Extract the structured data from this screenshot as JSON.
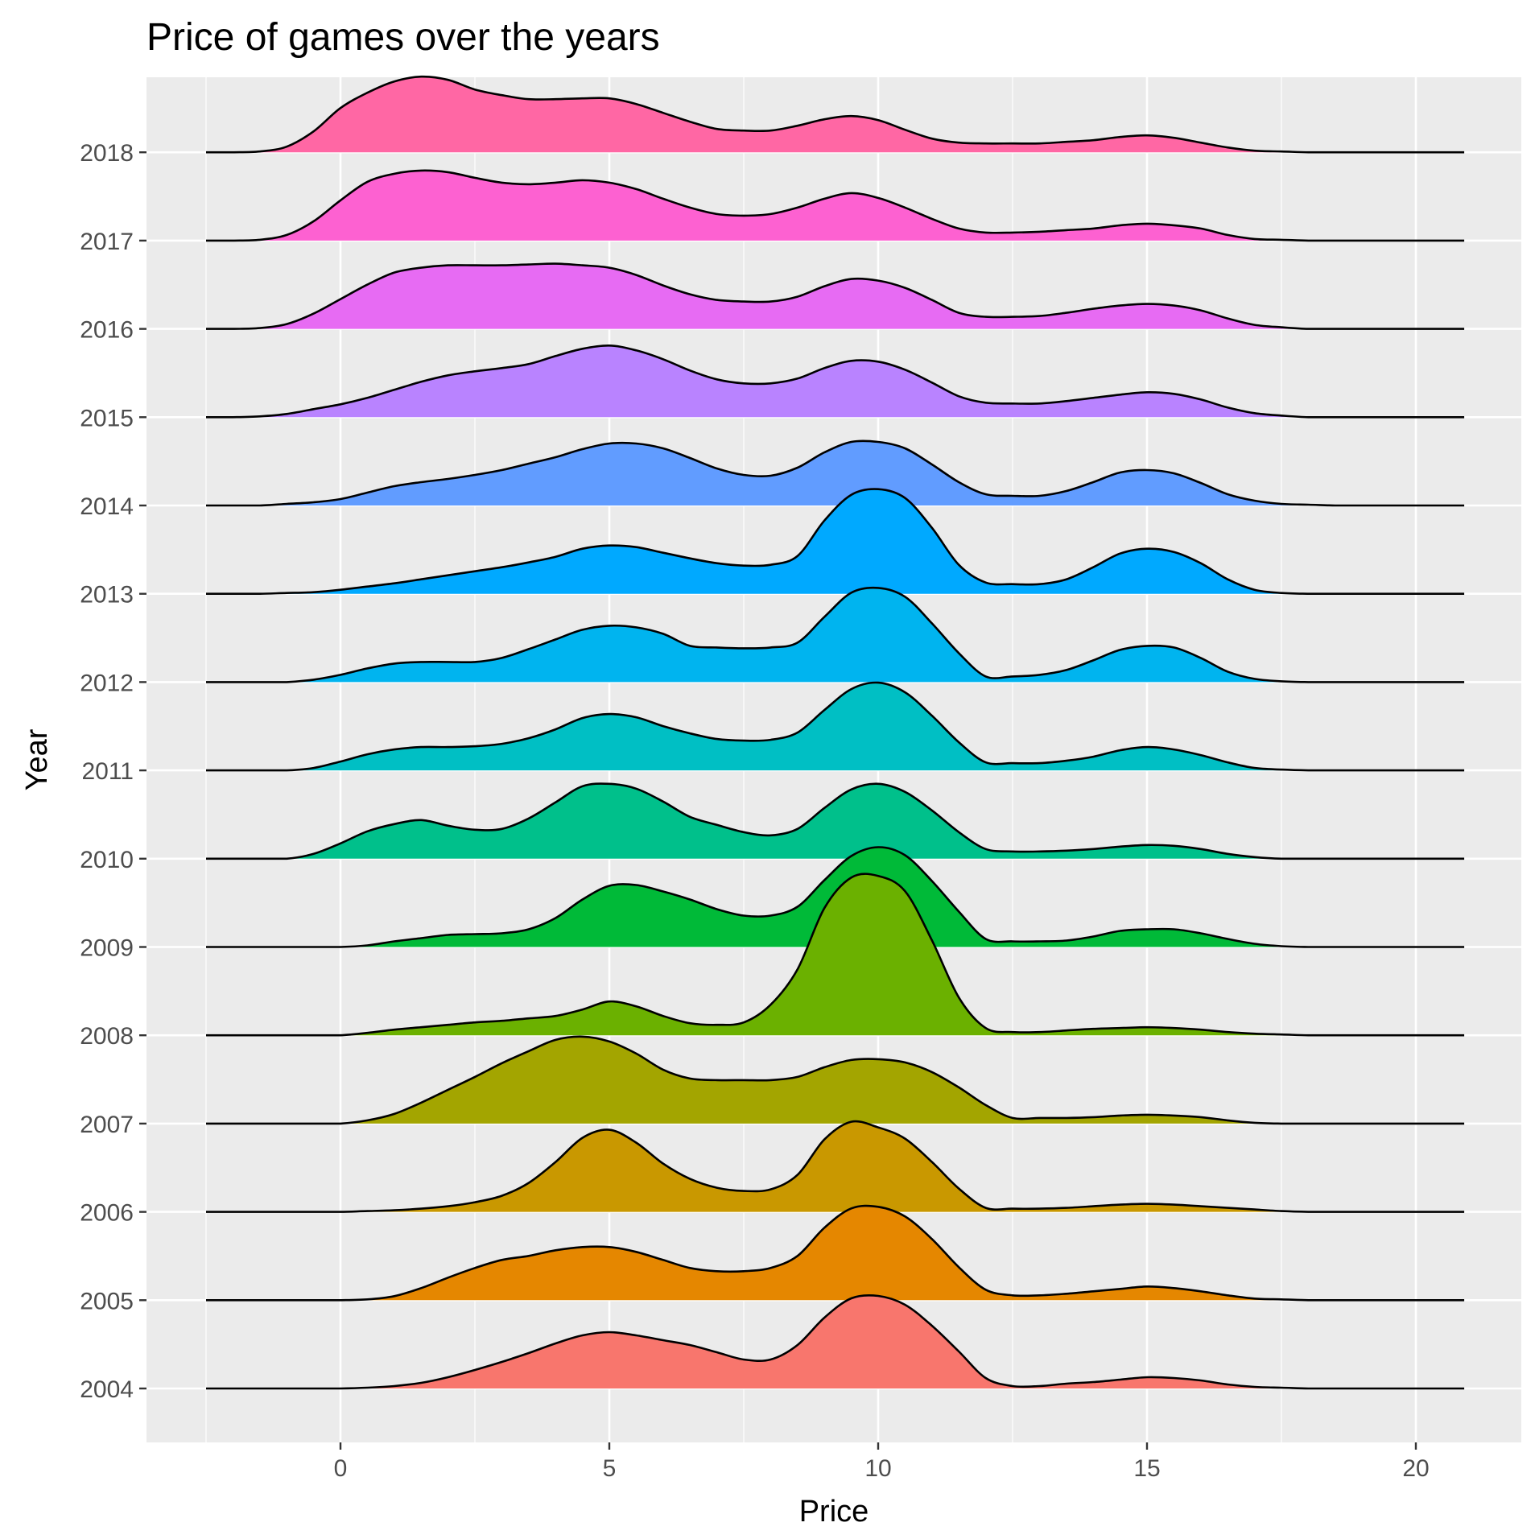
{
  "chart_data": {
    "type": "area",
    "subtype": "ridgeline",
    "title": "Price of games over the years",
    "xlabel": "Price",
    "ylabel": "Year",
    "xlim": [
      -2.5,
      20.9
    ],
    "x_ticks": [
      0,
      5,
      10,
      15,
      20
    ],
    "x_tick_labels": [
      "0",
      "5",
      "10",
      "15",
      "20"
    ],
    "categories": [
      "2004",
      "2005",
      "2006",
      "2007",
      "2008",
      "2009",
      "2010",
      "2011",
      "2012",
      "2013",
      "2014",
      "2015",
      "2016",
      "2017",
      "2018"
    ],
    "background": "#EBEBEB",
    "grid": true,
    "legend": "none",
    "x": [
      -2.5,
      -2,
      -1.5,
      -1,
      -0.5,
      0,
      0.5,
      1,
      1.5,
      2,
      2.5,
      3,
      3.5,
      4,
      4.5,
      5,
      5.5,
      6,
      6.5,
      7,
      7.5,
      8,
      8.5,
      9,
      9.5,
      10,
      10.5,
      11,
      11.5,
      12,
      12.5,
      13,
      13.5,
      14,
      14.5,
      15,
      15.5,
      16,
      16.5,
      17,
      17.5,
      18,
      18.5,
      19,
      19.5,
      20,
      20.5,
      20.9
    ],
    "series": [
      {
        "name": "2004",
        "color": "#F8766D",
        "values": [
          0,
          0,
          0,
          0,
          0,
          0,
          0.01,
          0.03,
          0.07,
          0.14,
          0.23,
          0.33,
          0.44,
          0.56,
          0.66,
          0.7,
          0.66,
          0.6,
          0.54,
          0.45,
          0.36,
          0.36,
          0.54,
          0.88,
          1.12,
          1.15,
          1.04,
          0.78,
          0.46,
          0.13,
          0.03,
          0.03,
          0.06,
          0.08,
          0.11,
          0.14,
          0.13,
          0.1,
          0.05,
          0.02,
          0.01,
          0,
          0,
          0,
          0,
          0,
          0,
          0
        ]
      },
      {
        "name": "2005",
        "color": "#E58700",
        "values": [
          0,
          0,
          0,
          0,
          0,
          0,
          0.01,
          0.05,
          0.15,
          0.28,
          0.4,
          0.5,
          0.55,
          0.62,
          0.66,
          0.66,
          0.6,
          0.5,
          0.4,
          0.36,
          0.36,
          0.4,
          0.55,
          0.9,
          1.14,
          1.16,
          1.04,
          0.76,
          0.41,
          0.13,
          0.06,
          0.06,
          0.08,
          0.11,
          0.14,
          0.17,
          0.15,
          0.11,
          0.06,
          0.02,
          0.01,
          0,
          0,
          0,
          0,
          0,
          0,
          0
        ]
      },
      {
        "name": "2006",
        "color": "#C99800",
        "values": [
          0,
          0,
          0,
          0,
          0,
          0,
          0.01,
          0.02,
          0.04,
          0.07,
          0.12,
          0.2,
          0.36,
          0.62,
          0.92,
          1.02,
          0.86,
          0.6,
          0.41,
          0.3,
          0.26,
          0.28,
          0.46,
          0.9,
          1.12,
          1.05,
          0.91,
          0.62,
          0.29,
          0.05,
          0.04,
          0.04,
          0.05,
          0.07,
          0.09,
          0.1,
          0.09,
          0.07,
          0.05,
          0.03,
          0.01,
          0,
          0,
          0,
          0,
          0,
          0,
          0
        ]
      },
      {
        "name": "2007",
        "color": "#A3A500",
        "values": [
          0,
          0,
          0,
          0,
          0,
          0,
          0.04,
          0.12,
          0.26,
          0.42,
          0.58,
          0.75,
          0.9,
          1.04,
          1.08,
          1.02,
          0.87,
          0.67,
          0.56,
          0.54,
          0.54,
          0.54,
          0.58,
          0.7,
          0.79,
          0.8,
          0.76,
          0.64,
          0.45,
          0.23,
          0.07,
          0.07,
          0.07,
          0.08,
          0.1,
          0.11,
          0.1,
          0.08,
          0.04,
          0.01,
          0,
          0,
          0,
          0,
          0,
          0,
          0,
          0
        ]
      },
      {
        "name": "2008",
        "color": "#6BB100",
        "values": [
          0,
          0,
          0,
          0,
          0,
          0,
          0.03,
          0.07,
          0.1,
          0.13,
          0.16,
          0.18,
          0.21,
          0.24,
          0.32,
          0.42,
          0.36,
          0.24,
          0.15,
          0.13,
          0.16,
          0.38,
          0.82,
          1.58,
          1.96,
          1.98,
          1.79,
          1.18,
          0.47,
          0.09,
          0.04,
          0.04,
          0.06,
          0.08,
          0.09,
          0.1,
          0.09,
          0.07,
          0.04,
          0.02,
          0.01,
          0,
          0,
          0,
          0,
          0,
          0,
          0
        ]
      },
      {
        "name": "2009",
        "color": "#00BA38",
        "values": [
          0,
          0,
          0,
          0,
          0,
          0,
          0.02,
          0.07,
          0.11,
          0.15,
          0.16,
          0.17,
          0.22,
          0.36,
          0.59,
          0.76,
          0.77,
          0.69,
          0.59,
          0.47,
          0.39,
          0.39,
          0.5,
          0.83,
          1.13,
          1.24,
          1.14,
          0.82,
          0.44,
          0.1,
          0.07,
          0.07,
          0.08,
          0.13,
          0.2,
          0.22,
          0.22,
          0.17,
          0.1,
          0.04,
          0.01,
          0,
          0,
          0,
          0,
          0,
          0,
          0
        ]
      },
      {
        "name": "2010",
        "color": "#00C08B",
        "values": [
          0,
          0,
          0,
          0,
          0.06,
          0.19,
          0.34,
          0.43,
          0.48,
          0.41,
          0.36,
          0.37,
          0.5,
          0.7,
          0.9,
          0.93,
          0.87,
          0.71,
          0.52,
          0.42,
          0.33,
          0.29,
          0.37,
          0.63,
          0.86,
          0.93,
          0.83,
          0.6,
          0.33,
          0.12,
          0.09,
          0.09,
          0.1,
          0.12,
          0.15,
          0.17,
          0.16,
          0.12,
          0.06,
          0.02,
          0,
          0,
          0,
          0,
          0,
          0,
          0,
          0
        ]
      },
      {
        "name": "2011",
        "color": "#00BFC4",
        "values": [
          0,
          0,
          0,
          0,
          0.03,
          0.11,
          0.2,
          0.26,
          0.29,
          0.29,
          0.3,
          0.33,
          0.4,
          0.51,
          0.65,
          0.7,
          0.66,
          0.55,
          0.46,
          0.39,
          0.37,
          0.38,
          0.47,
          0.75,
          1.01,
          1.09,
          0.97,
          0.68,
          0.35,
          0.1,
          0.09,
          0.09,
          0.12,
          0.17,
          0.25,
          0.29,
          0.26,
          0.19,
          0.1,
          0.03,
          0.01,
          0,
          0,
          0,
          0,
          0,
          0,
          0
        ]
      },
      {
        "name": "2012",
        "color": "#00B4EF",
        "values": [
          0,
          0,
          0,
          0,
          0.03,
          0.09,
          0.17,
          0.23,
          0.25,
          0.25,
          0.25,
          0.3,
          0.41,
          0.53,
          0.65,
          0.7,
          0.68,
          0.6,
          0.45,
          0.43,
          0.42,
          0.43,
          0.49,
          0.81,
          1.11,
          1.17,
          1.06,
          0.73,
          0.36,
          0.07,
          0.07,
          0.09,
          0.15,
          0.27,
          0.4,
          0.45,
          0.43,
          0.3,
          0.13,
          0.04,
          0.01,
          0,
          0,
          0,
          0,
          0,
          0,
          0
        ]
      },
      {
        "name": "2013",
        "color": "#00A9FF",
        "values": [
          0,
          0,
          0,
          0.01,
          0.02,
          0.05,
          0.09,
          0.13,
          0.18,
          0.23,
          0.28,
          0.33,
          0.39,
          0.46,
          0.56,
          0.6,
          0.58,
          0.51,
          0.44,
          0.38,
          0.35,
          0.36,
          0.47,
          0.91,
          1.23,
          1.3,
          1.19,
          0.82,
          0.36,
          0.14,
          0.12,
          0.12,
          0.18,
          0.33,
          0.5,
          0.56,
          0.52,
          0.38,
          0.18,
          0.05,
          0.01,
          0,
          0,
          0,
          0,
          0,
          0,
          0
        ]
      },
      {
        "name": "2014",
        "color": "#619CFF",
        "values": [
          0,
          0,
          0,
          0.02,
          0.04,
          0.08,
          0.16,
          0.24,
          0.29,
          0.33,
          0.38,
          0.44,
          0.52,
          0.6,
          0.7,
          0.77,
          0.77,
          0.71,
          0.59,
          0.46,
          0.38,
          0.37,
          0.47,
          0.66,
          0.79,
          0.79,
          0.71,
          0.51,
          0.29,
          0.14,
          0.12,
          0.12,
          0.18,
          0.29,
          0.41,
          0.44,
          0.4,
          0.28,
          0.14,
          0.06,
          0.02,
          0.01,
          0,
          0,
          0,
          0,
          0,
          0
        ]
      },
      {
        "name": "2015",
        "color": "#B983FF",
        "values": [
          0,
          0,
          0.01,
          0.04,
          0.1,
          0.16,
          0.24,
          0.34,
          0.44,
          0.52,
          0.57,
          0.61,
          0.66,
          0.76,
          0.85,
          0.89,
          0.83,
          0.72,
          0.58,
          0.47,
          0.42,
          0.42,
          0.48,
          0.61,
          0.7,
          0.69,
          0.59,
          0.43,
          0.26,
          0.18,
          0.17,
          0.17,
          0.2,
          0.24,
          0.28,
          0.31,
          0.29,
          0.22,
          0.12,
          0.05,
          0.02,
          0,
          0,
          0,
          0,
          0,
          0,
          0
        ]
      },
      {
        "name": "2016",
        "color": "#E76BF3",
        "values": [
          0,
          0,
          0.01,
          0.06,
          0.19,
          0.37,
          0.55,
          0.7,
          0.76,
          0.79,
          0.79,
          0.79,
          0.8,
          0.81,
          0.79,
          0.76,
          0.67,
          0.54,
          0.43,
          0.36,
          0.34,
          0.34,
          0.4,
          0.53,
          0.62,
          0.6,
          0.51,
          0.36,
          0.2,
          0.15,
          0.15,
          0.16,
          0.2,
          0.25,
          0.29,
          0.31,
          0.29,
          0.23,
          0.13,
          0.05,
          0.02,
          0,
          0,
          0,
          0,
          0,
          0,
          0
        ]
      },
      {
        "name": "2017",
        "color": "#FD61D1",
        "values": [
          0,
          0,
          0.01,
          0.07,
          0.24,
          0.5,
          0.73,
          0.83,
          0.87,
          0.85,
          0.78,
          0.72,
          0.7,
          0.72,
          0.75,
          0.72,
          0.64,
          0.52,
          0.41,
          0.33,
          0.31,
          0.33,
          0.41,
          0.52,
          0.59,
          0.53,
          0.41,
          0.27,
          0.15,
          0.1,
          0.1,
          0.11,
          0.13,
          0.15,
          0.19,
          0.21,
          0.19,
          0.15,
          0.07,
          0.02,
          0.01,
          0,
          0,
          0,
          0,
          0,
          0,
          0
        ]
      },
      {
        "name": "2018",
        "color": "#FF67A4",
        "values": [
          0,
          0,
          0.01,
          0.07,
          0.26,
          0.55,
          0.74,
          0.88,
          0.94,
          0.9,
          0.78,
          0.71,
          0.66,
          0.66,
          0.67,
          0.67,
          0.6,
          0.49,
          0.38,
          0.29,
          0.27,
          0.27,
          0.33,
          0.41,
          0.45,
          0.4,
          0.28,
          0.17,
          0.12,
          0.11,
          0.11,
          0.11,
          0.13,
          0.15,
          0.19,
          0.21,
          0.18,
          0.12,
          0.06,
          0.02,
          0.01,
          0,
          0,
          0,
          0,
          0,
          0,
          0
        ]
      }
    ]
  }
}
